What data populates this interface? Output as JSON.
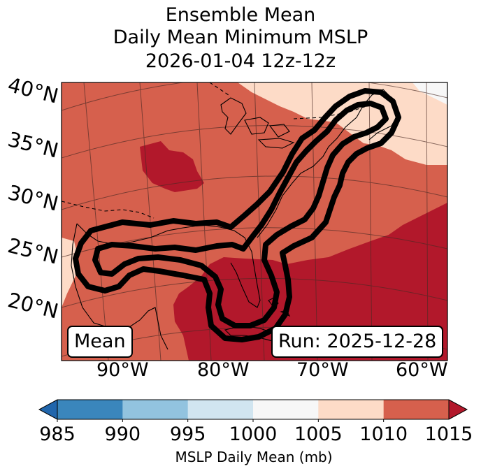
{
  "title": {
    "line1": "Ensemble Mean",
    "line2": "Daily Mean Minimum MSLP",
    "line3": "2026-01-04 12z-12z"
  },
  "map": {
    "region": "Eastern United States and western Atlantic",
    "lat_labels": [
      "40°N",
      "35°N",
      "30°N",
      "25°N",
      "20°N"
    ],
    "lon_labels": [
      "90°W",
      "80°W",
      "70°W",
      "60°W"
    ],
    "contour_description": "thick black outline",
    "mean_label": "Mean",
    "run_label": "Run: 2025-12-28"
  },
  "colorbar": {
    "ticks": [
      "985",
      "990",
      "995",
      "1000",
      "1005",
      "1010",
      "1015"
    ],
    "label": "MSLP Daily Mean (mb)",
    "colors": [
      "#3a86bc",
      "#92c3df",
      "#d1e5f0",
      "#f7f7f7",
      "#fddbc7",
      "#d6604d",
      "#b2182b"
    ],
    "under_color": "#2166ac",
    "over_color": "#b2182b"
  }
}
